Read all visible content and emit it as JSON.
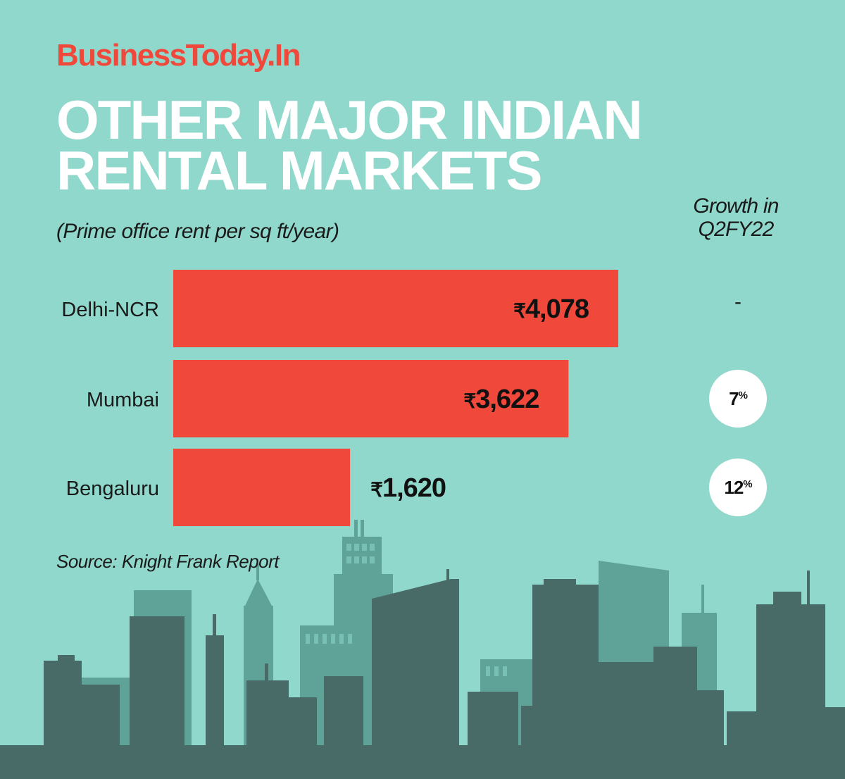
{
  "brand": "BusinessToday.In",
  "title_lines": [
    "OTHER MAJOR INDIAN",
    "RENTAL MARKETS"
  ],
  "subtitle": "(Prime office rent per sq ft/year)",
  "growth_header_lines": [
    "Growth in",
    "Q2FY22"
  ],
  "source": "Source: Knight Frank Report",
  "colors": {
    "background": "#8fd8cb",
    "bar": "#f0483a",
    "brand": "#f0483a",
    "badge": "#ffffff",
    "skyline_dark": "#486b68",
    "skyline_light": "#5fa398"
  },
  "chart_data": {
    "type": "bar",
    "orientation": "horizontal",
    "currency_symbol": "₹",
    "categories": [
      "Delhi-NCR",
      "Mumbai",
      "Bengaluru"
    ],
    "values": [
      4078,
      3622,
      1620
    ],
    "value_labels": [
      "4,078",
      "3,622",
      "1,620"
    ],
    "growth": [
      "-",
      "7",
      "12"
    ],
    "growth_unit": "%"
  }
}
